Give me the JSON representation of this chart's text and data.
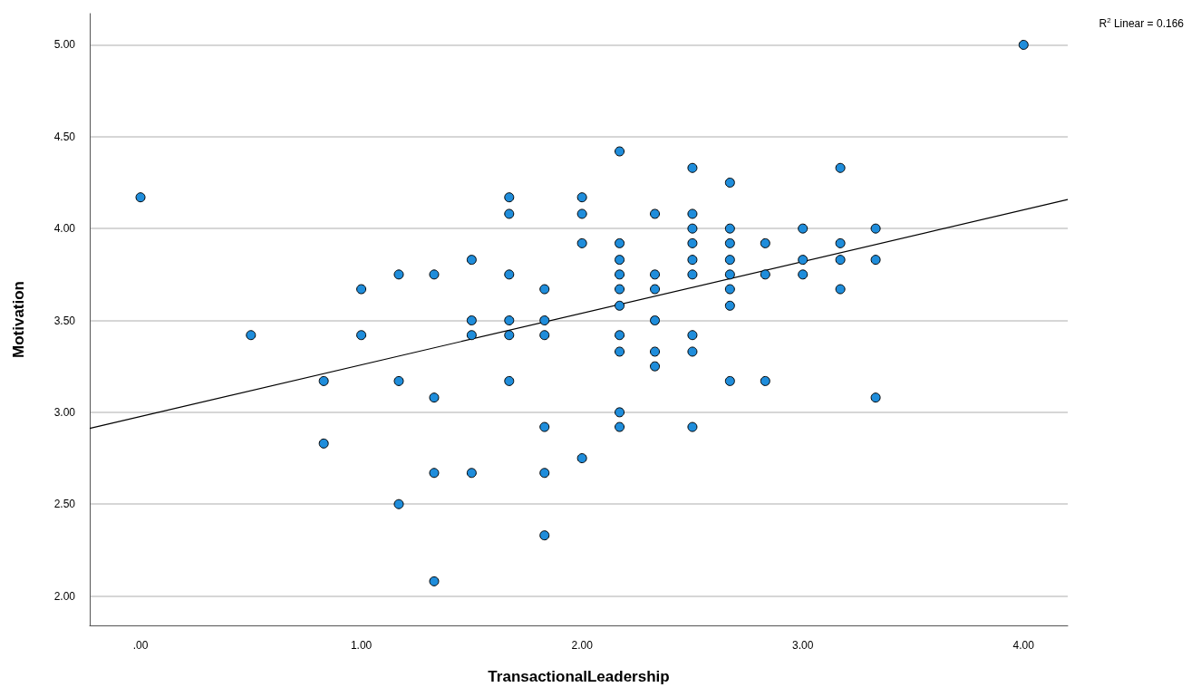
{
  "chart_data": {
    "type": "scatter",
    "xlabel": "TransactionalLeadership",
    "ylabel": "Motivation",
    "annotations": [
      "R$^{2}$ Linear = 0.166"
    ],
    "xlim": [
      -0.23,
      4.2
    ],
    "ylim": [
      1.84,
      5.17
    ],
    "xticks": [
      {
        "value": 0,
        "label": ".00"
      },
      {
        "value": 1,
        "label": "1.00"
      },
      {
        "value": 2,
        "label": "2.00"
      },
      {
        "value": 3,
        "label": "3.00"
      },
      {
        "value": 4,
        "label": "4.00"
      }
    ],
    "yticks": [
      {
        "value": 2,
        "label": "2.00"
      },
      {
        "value": 2.5,
        "label": "2.50"
      },
      {
        "value": 3,
        "label": "3.00"
      },
      {
        "value": 3.5,
        "label": "3.50"
      },
      {
        "value": 4,
        "label": "4.00"
      },
      {
        "value": 4.5,
        "label": "4.50"
      },
      {
        "value": 5,
        "label": "5.00"
      }
    ],
    "grid": "y",
    "marker": "circle",
    "series": [
      {
        "type": "scatter",
        "color": "#1f8ddb",
        "x": [
          0,
          0.5,
          0.83,
          0.83,
          1,
          1,
          1.17,
          1.17,
          1.17,
          1.33,
          1.33,
          1.33,
          1.33,
          1.5,
          1.5,
          1.5,
          1.5,
          1.67,
          1.67,
          1.67,
          1.67,
          1.67,
          1.67,
          1.83,
          1.83,
          1.83,
          1.83,
          1.83,
          1.83,
          2,
          2,
          2,
          2,
          2.17,
          2.17,
          2.17,
          2.17,
          2.17,
          2.17,
          2.17,
          2.17,
          2.17,
          2.17,
          2.33,
          2.33,
          2.33,
          2.33,
          2.33,
          2.33,
          2.5,
          2.5,
          2.5,
          2.5,
          2.5,
          2.5,
          2.5,
          2.5,
          2.5,
          2.67,
          2.67,
          2.67,
          2.67,
          2.67,
          2.67,
          2.67,
          2.67,
          2.83,
          2.83,
          2.83,
          3,
          3,
          3,
          3.17,
          3.17,
          3.17,
          3.17,
          3.33,
          3.33,
          3.33,
          4
        ],
        "values": [
          4.17,
          3.42,
          3.17,
          2.83,
          3.67,
          3.42,
          3.75,
          3.17,
          2.5,
          3.75,
          3.08,
          2.67,
          2.08,
          3.83,
          3.5,
          3.42,
          2.67,
          4.17,
          4.08,
          3.75,
          3.5,
          3.42,
          3.17,
          3.67,
          3.5,
          3.42,
          2.92,
          2.67,
          2.33,
          4.17,
          4.08,
          3.92,
          2.75,
          4.42,
          3.92,
          3.83,
          3.75,
          3.67,
          3.58,
          3.42,
          3.33,
          3,
          2.92,
          4.08,
          3.75,
          3.67,
          3.5,
          3.33,
          3.25,
          4.33,
          4.08,
          4,
          3.92,
          3.83,
          3.75,
          3.42,
          3.33,
          2.92,
          4.25,
          4,
          3.92,
          3.83,
          3.75,
          3.67,
          3.58,
          3.17,
          3.92,
          3.75,
          3.17,
          4,
          3.83,
          3.75,
          4.33,
          3.92,
          3.83,
          3.67,
          4,
          3.83,
          3.08,
          5
        ]
      },
      {
        "type": "line",
        "color": "#000000",
        "marker": "none",
        "x": [
          -0.23,
          4.2
        ],
        "values": [
          2.912,
          4.158
        ]
      }
    ]
  }
}
